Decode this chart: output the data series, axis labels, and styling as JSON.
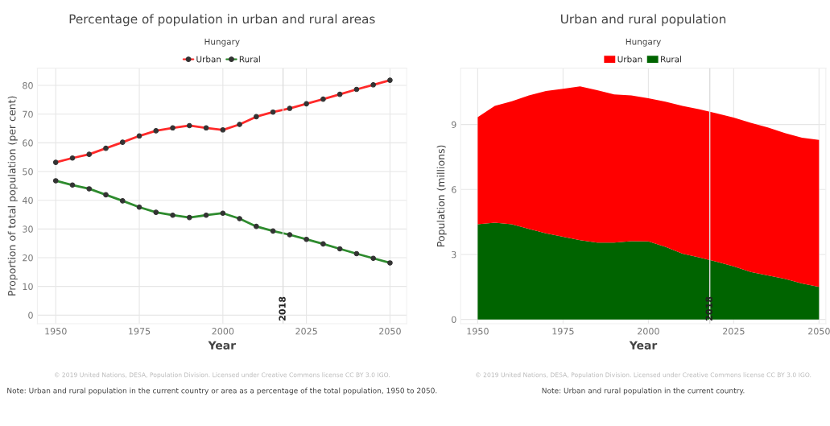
{
  "chart_data": [
    {
      "type": "line",
      "title": "Percentage of population in urban and rural areas",
      "subtitle": "Hungary",
      "xlabel": "Year",
      "ylabel": "Proportion of total population (per cent)",
      "x": [
        1950,
        1955,
        1960,
        1965,
        1970,
        1975,
        1980,
        1985,
        1990,
        1995,
        2000,
        2005,
        2010,
        2015,
        2020,
        2025,
        2030,
        2035,
        2040,
        2045,
        2050
      ],
      "series": [
        {
          "name": "Urban",
          "color": "#ff2a2a",
          "values": [
            53.2,
            54.7,
            56.0,
            58.1,
            60.2,
            62.4,
            64.2,
            65.2,
            66.0,
            65.2,
            64.5,
            66.4,
            69.1,
            70.7,
            72.0,
            73.6,
            75.2,
            76.9,
            78.6,
            80.2,
            81.8
          ]
        },
        {
          "name": "Rural",
          "color": "#2e8b2e",
          "values": [
            46.8,
            45.3,
            44.0,
            41.9,
            39.8,
            37.6,
            35.8,
            34.8,
            34.0,
            34.8,
            35.5,
            33.6,
            30.9,
            29.3,
            28.0,
            26.4,
            24.8,
            23.1,
            21.4,
            19.8,
            18.2
          ]
        }
      ],
      "xlim": [
        1944.5,
        2055
      ],
      "xticks": [
        1950,
        1975,
        2000,
        2025,
        2050
      ],
      "ylim": [
        -3,
        86
      ],
      "yticks": [
        0,
        10,
        20,
        30,
        40,
        50,
        60,
        70,
        80
      ],
      "ref_lines": [
        {
          "axis": "x",
          "value": 2018,
          "label": "2018",
          "color": "#dddddd"
        }
      ],
      "grid": true,
      "legend": "top",
      "marker": "circle",
      "line_style": "solid",
      "annotations": [
        "© 2019 United Nations, DESA, Population Division. Licensed under Creative Commons license CC BY 3.0 IGO.",
        "Note: Urban and rural population in the current country or area as a percentage of the total population, 1950 to 2050."
      ]
    },
    {
      "type": "area",
      "title": "Urban and rural population",
      "subtitle": "Hungary",
      "xlabel": "Year",
      "ylabel": "Population (millions)",
      "stacked": true,
      "x": [
        1950,
        1955,
        1960,
        1965,
        1970,
        1975,
        1980,
        1985,
        1990,
        1995,
        2000,
        2005,
        2010,
        2015,
        2020,
        2025,
        2030,
        2035,
        2040,
        2045,
        2050
      ],
      "series": [
        {
          "name": "Rural",
          "color": "#006400",
          "values": [
            4.39,
            4.47,
            4.39,
            4.18,
            3.97,
            3.82,
            3.66,
            3.55,
            3.55,
            3.61,
            3.6,
            3.35,
            3.04,
            2.86,
            2.66,
            2.45,
            2.19,
            2.03,
            1.87,
            1.66,
            1.5
          ]
        },
        {
          "name": "Urban",
          "color": "#ff0000",
          "values": [
            4.95,
            5.39,
            5.68,
            6.16,
            6.58,
            6.83,
            7.1,
            7.03,
            6.84,
            6.73,
            6.61,
            6.7,
            6.82,
            6.84,
            6.85,
            6.87,
            6.89,
            6.83,
            6.73,
            6.73,
            6.79
          ]
        }
      ],
      "xlim": [
        1945,
        2052
      ],
      "xticks": [
        1950,
        1975,
        2000,
        2025,
        2050
      ],
      "ylim": [
        -0.2,
        11.6
      ],
      "yticks": [
        0,
        3,
        6,
        9
      ],
      "ref_lines": [
        {
          "axis": "x",
          "value": 2018,
          "label": "2018",
          "color": "#dddddd"
        }
      ],
      "grid": true,
      "legend": "top",
      "annotations": [
        "© 2019 United Nations, DESA, Population Division. Licensed under Creative Commons license CC BY 3.0 IGO.",
        "Note: Urban and rural population in the current country."
      ]
    }
  ]
}
